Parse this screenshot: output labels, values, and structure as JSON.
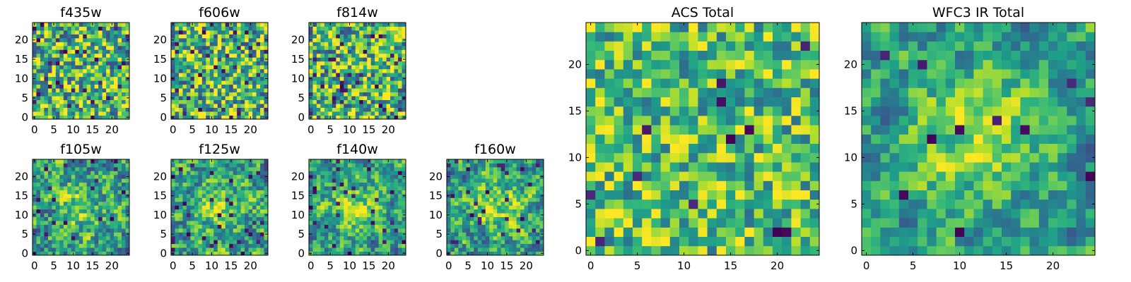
{
  "chart_data": [
    {
      "type": "heatmap",
      "title": "f435w",
      "grid_size": 25,
      "colormap": "viridis",
      "xlim": [
        -0.5,
        24.5
      ],
      "ylim": [
        -0.5,
        24.5
      ],
      "xticks": [
        0,
        5,
        10,
        15,
        20
      ],
      "yticks": [
        0,
        5,
        10,
        15,
        20
      ],
      "xlabel": "",
      "ylabel": "",
      "legend": "none",
      "profile": {
        "kind": "noise",
        "smooth": 0.1,
        "peak_amplitude": 0.0,
        "mean": 0.68,
        "spread": 0.45,
        "dark_pixel_fraction": 0.05,
        "seed": 11
      }
    },
    {
      "type": "heatmap",
      "title": "f606w",
      "grid_size": 25,
      "colormap": "viridis",
      "xlim": [
        -0.5,
        24.5
      ],
      "ylim": [
        -0.5,
        24.5
      ],
      "xticks": [
        0,
        5,
        10,
        15,
        20
      ],
      "yticks": [
        0,
        5,
        10,
        15,
        20
      ],
      "xlabel": "",
      "ylabel": "",
      "legend": "none",
      "profile": {
        "kind": "noise",
        "smooth": 0.1,
        "peak_amplitude": 0.0,
        "mean": 0.66,
        "spread": 0.45,
        "dark_pixel_fraction": 0.05,
        "seed": 23
      }
    },
    {
      "type": "heatmap",
      "title": "f814w",
      "grid_size": 25,
      "colormap": "viridis",
      "xlim": [
        -0.5,
        24.5
      ],
      "ylim": [
        -0.5,
        24.5
      ],
      "xticks": [
        0,
        5,
        10,
        15,
        20
      ],
      "yticks": [
        0,
        5,
        10,
        15,
        20
      ],
      "xlabel": "",
      "ylabel": "",
      "legend": "none",
      "profile": {
        "kind": "noise",
        "smooth": 0.1,
        "peak_amplitude": 0.0,
        "mean": 0.67,
        "spread": 0.45,
        "dark_pixel_fraction": 0.05,
        "seed": 37
      }
    },
    {
      "type": "heatmap",
      "title": "f105w",
      "grid_size": 25,
      "colormap": "viridis",
      "xlim": [
        -0.5,
        24.5
      ],
      "ylim": [
        -0.5,
        24.5
      ],
      "xticks": [
        0,
        5,
        10,
        15,
        20
      ],
      "yticks": [
        0,
        5,
        10,
        15,
        20
      ],
      "xlabel": "",
      "ylabel": "",
      "legend": "none",
      "profile": {
        "kind": "source",
        "smooth": 0.4,
        "peak_amplitude": 0.22,
        "mean": 0.55,
        "spread": 0.38,
        "dark_pixel_fraction": 0.04,
        "seed": 41
      }
    },
    {
      "type": "heatmap",
      "title": "f125w",
      "grid_size": 25,
      "colormap": "viridis",
      "xlim": [
        -0.5,
        24.5
      ],
      "ylim": [
        -0.5,
        24.5
      ],
      "xticks": [
        0,
        5,
        10,
        15,
        20
      ],
      "yticks": [
        0,
        5,
        10,
        15,
        20
      ],
      "xlabel": "",
      "ylabel": "",
      "legend": "none",
      "profile": {
        "kind": "source",
        "smooth": 0.45,
        "peak_amplitude": 0.24,
        "mean": 0.55,
        "spread": 0.38,
        "dark_pixel_fraction": 0.04,
        "seed": 53
      }
    },
    {
      "type": "heatmap",
      "title": "f140w",
      "grid_size": 25,
      "colormap": "viridis",
      "xlim": [
        -0.5,
        24.5
      ],
      "ylim": [
        -0.5,
        24.5
      ],
      "xticks": [
        0,
        5,
        10,
        15,
        20
      ],
      "yticks": [
        0,
        5,
        10,
        15,
        20
      ],
      "xlabel": "",
      "ylabel": "",
      "legend": "none",
      "profile": {
        "kind": "source",
        "smooth": 0.5,
        "peak_amplitude": 0.28,
        "mean": 0.55,
        "spread": 0.36,
        "dark_pixel_fraction": 0.04,
        "seed": 67
      }
    },
    {
      "type": "heatmap",
      "title": "f160w",
      "grid_size": 25,
      "colormap": "viridis",
      "xlim": [
        -0.5,
        24.5
      ],
      "ylim": [
        -0.5,
        24.5
      ],
      "xticks": [
        0,
        5,
        10,
        15,
        20
      ],
      "yticks": [
        0,
        5,
        10,
        15,
        20
      ],
      "xlabel": "",
      "ylabel": "",
      "legend": "none",
      "profile": {
        "kind": "source",
        "smooth": 0.5,
        "peak_amplitude": 0.32,
        "mean": 0.55,
        "spread": 0.36,
        "dark_pixel_fraction": 0.04,
        "seed": 79
      }
    },
    {
      "type": "heatmap",
      "title": "ACS Total",
      "grid_size": 25,
      "colormap": "viridis",
      "xlim": [
        -0.5,
        24.5
      ],
      "ylim": [
        -0.5,
        24.5
      ],
      "xticks": [
        0,
        5,
        10,
        15,
        20
      ],
      "yticks": [
        0,
        5,
        10,
        15,
        20
      ],
      "xlabel": "",
      "ylabel": "",
      "legend": "none",
      "profile": {
        "kind": "noise",
        "smooth": 0.15,
        "peak_amplitude": 0.0,
        "mean": 0.7,
        "spread": 0.35,
        "dark_pixel_fraction": 0.025,
        "seed": 97
      }
    },
    {
      "type": "heatmap",
      "title": "WFC3 IR Total",
      "grid_size": 25,
      "colormap": "viridis",
      "xlim": [
        -0.5,
        24.5
      ],
      "ylim": [
        -0.5,
        24.5
      ],
      "xticks": [
        0,
        5,
        10,
        15,
        20
      ],
      "yticks": [
        0,
        5,
        10,
        15,
        20
      ],
      "xlabel": "",
      "ylabel": "",
      "legend": "none",
      "profile": {
        "kind": "source",
        "smooth": 0.55,
        "peak_amplitude": 0.35,
        "mean": 0.55,
        "spread": 0.3,
        "dark_pixel_fraction": 0.025,
        "seed": 113
      }
    }
  ]
}
